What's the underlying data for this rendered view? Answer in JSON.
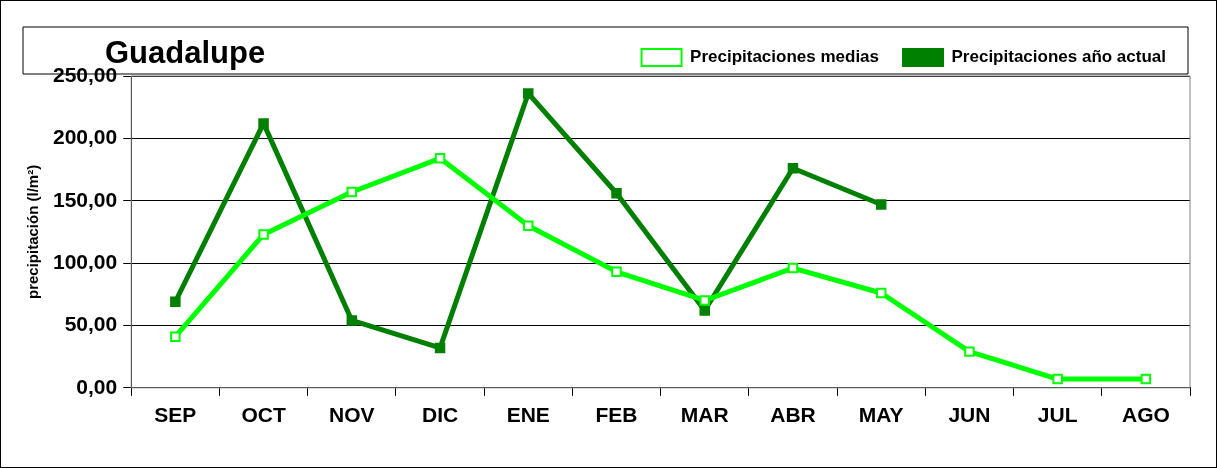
{
  "chart_data": {
    "type": "line",
    "title": "Guadalupe",
    "ylabel": "precipitación (l/m²)",
    "categories": [
      "SEP",
      "OCT",
      "NOV",
      "DIC",
      "ENE",
      "FEB",
      "MAR",
      "ABR",
      "MAY",
      "JUN",
      "JUL",
      "AGO"
    ],
    "series": [
      {
        "name": "Precipitaciones medias",
        "color": "#00ff00",
        "values": [
          41,
          123,
          157,
          184,
          130,
          93,
          70,
          96,
          76,
          29,
          7,
          7
        ]
      },
      {
        "name": "Precipitaciones año actual",
        "color": "#008000",
        "values": [
          69,
          212,
          54,
          32,
          236,
          156,
          62,
          176,
          147,
          null,
          null,
          null
        ]
      }
    ],
    "ylim": [
      0,
      250
    ],
    "yticks": [
      {
        "value": 0,
        "label": "0,00"
      },
      {
        "value": 50,
        "label": "50,00"
      },
      {
        "value": 100,
        "label": "100,00"
      },
      {
        "value": 150,
        "label": "150,00"
      },
      {
        "value": 200,
        "label": "200,00"
      },
      {
        "value": 250,
        "label": "250,00"
      }
    ],
    "grid": "y",
    "legend": "top",
    "marker": "square",
    "line_style": "solid"
  }
}
